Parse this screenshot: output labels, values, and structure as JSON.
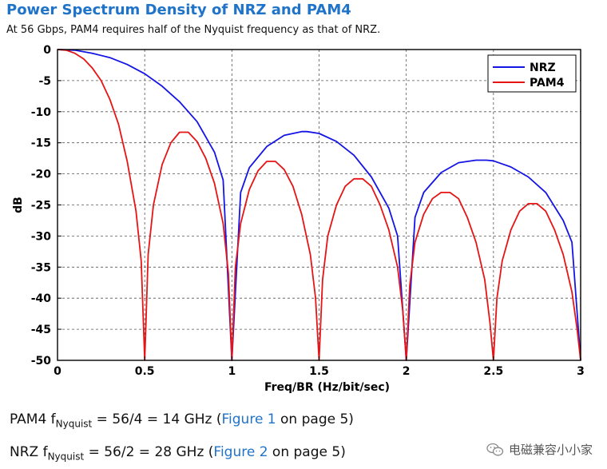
{
  "title": "Power Spectrum Density of NRZ and PAM4",
  "subtitle": "At 56 Gbps, PAM4 requires half of the Nyquist frequency as that of NRZ.",
  "chart_data": {
    "type": "line",
    "xlabel": "Freq/BR (Hz/bit/sec)",
    "ylabel": "dB",
    "xlim": [
      0,
      3
    ],
    "ylim": [
      -50,
      0
    ],
    "xticks": [
      0,
      0.5,
      1,
      1.5,
      2,
      2.5,
      3
    ],
    "xtick_labels": [
      "0",
      "0.5",
      "1",
      "1.5",
      "2",
      "2.5",
      "3"
    ],
    "yticks": [
      0,
      -5,
      -10,
      -15,
      -20,
      -25,
      -30,
      -35,
      -40,
      -45,
      -50
    ],
    "ytick_labels": [
      "0",
      "-5",
      "-10",
      "-15",
      "-20",
      "-25",
      "-30",
      "-35",
      "-40",
      "-45",
      "-50"
    ],
    "grid": true,
    "legend_position": "top-right",
    "series": [
      {
        "name": "NRZ",
        "color": "#1414e6",
        "x": [
          0,
          0.1,
          0.2,
          0.3,
          0.4,
          0.5,
          0.6,
          0.7,
          0.8,
          0.9,
          0.95,
          1.0,
          1.05,
          1.1,
          1.2,
          1.3,
          1.4,
          1.43,
          1.5,
          1.6,
          1.7,
          1.8,
          1.9,
          1.95,
          2.0,
          2.05,
          2.1,
          2.2,
          2.3,
          2.4,
          2.46,
          2.5,
          2.6,
          2.7,
          2.8,
          2.9,
          2.95,
          3.0
        ],
        "y": [
          0,
          -0.1,
          -0.6,
          -1.3,
          -2.4,
          -3.9,
          -5.9,
          -8.4,
          -11.6,
          -16.5,
          -21.0,
          -50,
          -23.0,
          -19.0,
          -15.6,
          -13.8,
          -13.2,
          -13.2,
          -13.5,
          -14.8,
          -17.0,
          -20.5,
          -25.5,
          -30.0,
          -50,
          -27.0,
          -23.0,
          -19.8,
          -18.2,
          -17.8,
          -17.8,
          -17.9,
          -18.9,
          -20.5,
          -23.0,
          -27.5,
          -31.0,
          -50
        ]
      },
      {
        "name": "PAM4",
        "color": "#e61414",
        "x": [
          0,
          0.05,
          0.1,
          0.15,
          0.2,
          0.25,
          0.3,
          0.35,
          0.4,
          0.45,
          0.48,
          0.5,
          0.52,
          0.55,
          0.6,
          0.65,
          0.7,
          0.75,
          0.8,
          0.85,
          0.9,
          0.95,
          0.98,
          1.0,
          1.02,
          1.05,
          1.1,
          1.15,
          1.2,
          1.25,
          1.3,
          1.35,
          1.4,
          1.45,
          1.48,
          1.5,
          1.52,
          1.55,
          1.6,
          1.65,
          1.7,
          1.75,
          1.8,
          1.85,
          1.9,
          1.95,
          1.98,
          2.0,
          2.02,
          2.05,
          2.1,
          2.15,
          2.2,
          2.25,
          2.3,
          2.35,
          2.4,
          2.45,
          2.48,
          2.5,
          2.52,
          2.55,
          2.6,
          2.65,
          2.7,
          2.75,
          2.8,
          2.85,
          2.9,
          2.95,
          2.98,
          3.0
        ],
        "y": [
          0,
          -0.1,
          -0.6,
          -1.5,
          -3.0,
          -5.0,
          -8.0,
          -12.0,
          -18.0,
          -26.0,
          -34.0,
          -50,
          -33.0,
          -25.0,
          -18.5,
          -15.0,
          -13.3,
          -13.3,
          -14.8,
          -17.5,
          -21.5,
          -28.0,
          -36.0,
          -50,
          -35.0,
          -28.0,
          -22.5,
          -19.5,
          -18.0,
          -18.0,
          -19.3,
          -22.0,
          -26.5,
          -33.0,
          -40.0,
          -50,
          -37.0,
          -30.0,
          -25.0,
          -22.0,
          -20.8,
          -20.8,
          -22.0,
          -25.0,
          -29.0,
          -35.0,
          -42.0,
          -50,
          -38.0,
          -31.0,
          -26.5,
          -24.0,
          -23.0,
          -23.0,
          -24.0,
          -27.0,
          -31.0,
          -37.0,
          -44.0,
          -50,
          -40.0,
          -34.0,
          -29.0,
          -26.0,
          -24.8,
          -24.8,
          -26.0,
          -29.0,
          -33.0,
          -39.0,
          -45.0,
          -50
        ]
      }
    ]
  },
  "notes": {
    "pam4": {
      "prefix": "PAM4 f",
      "sub": "Nyquist",
      "mid": " = 56/4 = 14 GHz (",
      "link": "Figure 1",
      "suffix": " on page 5)"
    },
    "nrz": {
      "prefix": "NRZ f",
      "sub": "Nyquist",
      "mid": " = 56/2 = 28 GHz (",
      "link": "Figure 2",
      "suffix": " on page 5)"
    }
  },
  "watermark": {
    "text": "电磁兼容小小家",
    "icon": "wechat-icon"
  }
}
